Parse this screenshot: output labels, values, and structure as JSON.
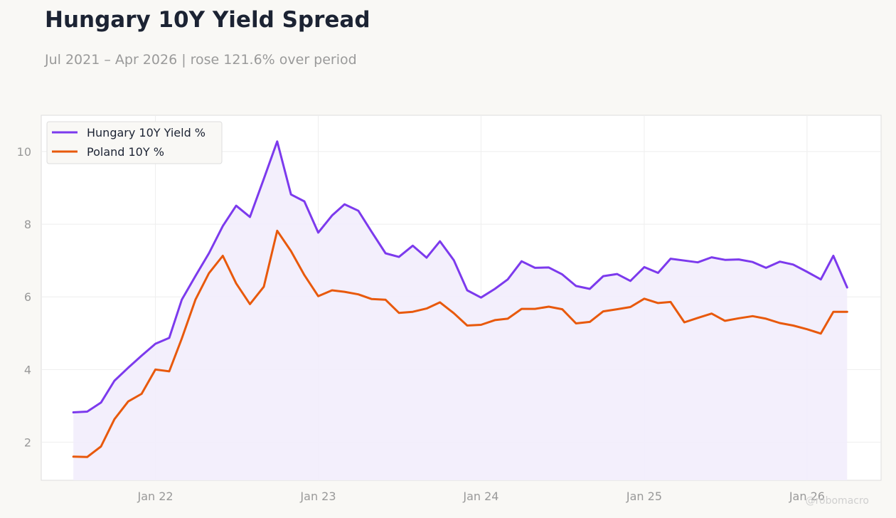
{
  "title": "Hungary 10Y Yield Spread",
  "subtitle": "Jul 2021 – Apr 2026 | rose 121.6% over period",
  "watermark": "@robomacro",
  "colors": {
    "hungary": "#7c3aed",
    "poland": "#e8590c",
    "fill": "#f2edfc",
    "plot_bg": "#ffffff",
    "grid": "#eeeeee",
    "axis_text": "#999999"
  },
  "chart_data": {
    "type": "line",
    "x_tick_labels": [
      "Jan 22",
      "Jan 23",
      "Jan 24",
      "Jan 25",
      "Jan 26"
    ],
    "y_ticks": [
      2,
      4,
      6,
      8,
      10
    ],
    "xlim": [
      "2021-04-20",
      "2026-06-16"
    ],
    "ylim": [
      0.95,
      11.0
    ],
    "grid": true,
    "legend_position": "top-left",
    "area_fill_between": [
      "Hungary 10Y Yield %",
      "axis-bottom"
    ],
    "x": [
      "2021-07",
      "2021-08",
      "2021-09",
      "2021-10",
      "2021-11",
      "2021-12",
      "2022-01",
      "2022-02",
      "2022-03",
      "2022-04",
      "2022-05",
      "2022-06",
      "2022-07",
      "2022-08",
      "2022-09",
      "2022-10",
      "2022-11",
      "2022-12",
      "2023-01",
      "2023-02",
      "2023-03",
      "2023-04",
      "2023-05",
      "2023-06",
      "2023-07",
      "2023-08",
      "2023-09",
      "2023-10",
      "2023-11",
      "2023-12",
      "2024-01",
      "2024-02",
      "2024-03",
      "2024-04",
      "2024-05",
      "2024-06",
      "2024-07",
      "2024-08",
      "2024-09",
      "2024-10",
      "2024-11",
      "2024-12",
      "2025-01",
      "2025-02",
      "2025-03",
      "2025-04",
      "2025-05",
      "2025-06",
      "2025-07",
      "2025-08",
      "2025-09",
      "2025-10",
      "2025-11",
      "2025-12",
      "2026-01",
      "2026-02",
      "2026-03",
      "2026-04"
    ],
    "series": [
      {
        "name": "Hungary 10Y Yield %",
        "color": "#7c3aed",
        "values": [
          2.82,
          2.84,
          3.09,
          3.69,
          4.05,
          4.38,
          4.71,
          4.87,
          5.92,
          6.58,
          7.2,
          7.95,
          8.51,
          8.2,
          9.25,
          10.28,
          8.82,
          8.63,
          7.77,
          8.24,
          8.55,
          8.37,
          7.79,
          7.2,
          7.1,
          7.41,
          7.08,
          7.53,
          7.01,
          6.18,
          5.98,
          6.22,
          6.48,
          6.98,
          6.8,
          6.81,
          6.62,
          6.3,
          6.22,
          6.57,
          6.63,
          6.44,
          6.82,
          6.66,
          7.05,
          7.0,
          6.95,
          7.09,
          7.02,
          7.03,
          6.96,
          6.8,
          6.97,
          6.89,
          6.69,
          6.48,
          7.13,
          6.26
        ]
      },
      {
        "name": "Poland 10Y %",
        "color": "#e8590c",
        "values": [
          1.6,
          1.59,
          1.88,
          2.63,
          3.12,
          3.33,
          4.0,
          3.95,
          4.85,
          5.93,
          6.65,
          7.13,
          6.37,
          5.8,
          6.28,
          7.82,
          7.26,
          6.6,
          6.02,
          6.18,
          6.14,
          6.07,
          5.94,
          5.92,
          5.56,
          5.59,
          5.68,
          5.85,
          5.55,
          5.21,
          5.23,
          5.36,
          5.4,
          5.67,
          5.67,
          5.73,
          5.66,
          5.27,
          5.31,
          5.6,
          5.66,
          5.72,
          5.95,
          5.83,
          5.86,
          5.3,
          5.42,
          5.54,
          5.34,
          5.41,
          5.47,
          5.4,
          5.28,
          5.21,
          5.11,
          4.99,
          5.59,
          5.59
        ]
      }
    ]
  }
}
